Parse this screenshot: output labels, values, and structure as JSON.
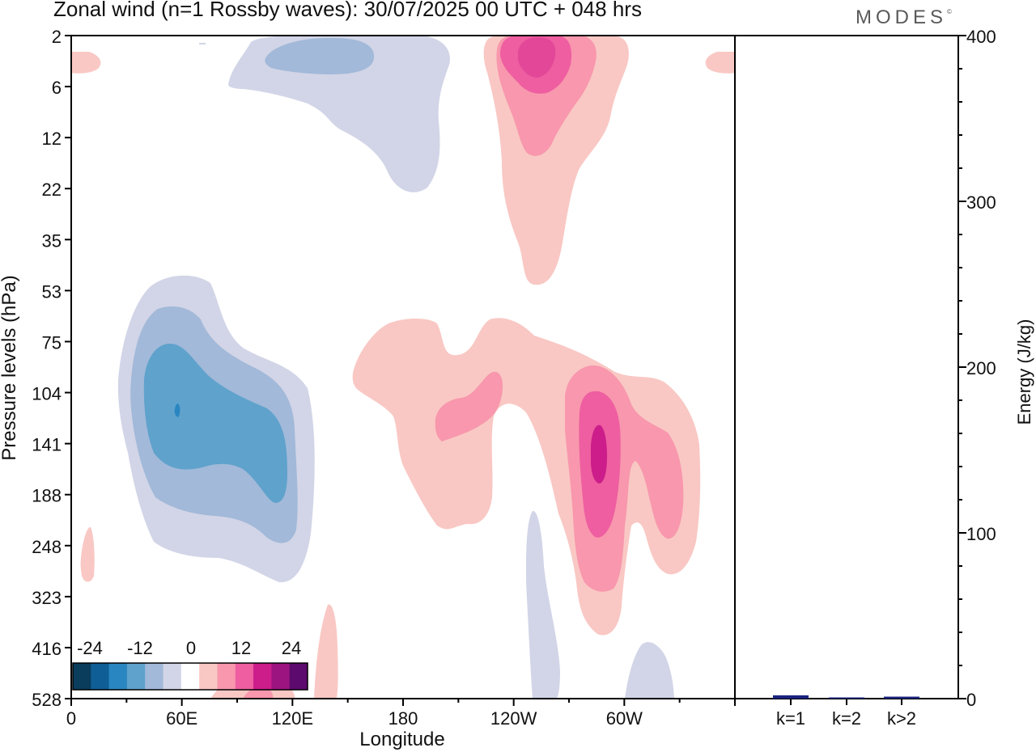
{
  "header": {
    "title": "Zonal wind (n=1 Rossby waves):  30/07/2025  00 UTC  + 048 hrs",
    "brand": "MODES",
    "brand_mark": "©"
  },
  "colors": {
    "neg_levels": [
      "#0a3d5c",
      "#0f5f96",
      "#2a86c0",
      "#5fa2cc",
      "#a2b9d9",
      "#d2d5e7"
    ],
    "pos_levels": [
      "#f9c8c4",
      "#f897ad",
      "#ee5ea0",
      "#cc1d8a",
      "#9c1480",
      "#5c0a6e"
    ],
    "energy_bar": "#1a237e"
  },
  "chart_data": [
    {
      "type": "heatmap",
      "title": "Zonal wind (n=1 Rossby waves):  30/07/2025  00 UTC  + 048 hrs",
      "xlabel": "Longitude",
      "ylabel": "Pressure levels (hPa)",
      "x_ticks": [
        "0",
        "60E",
        "120E",
        "180",
        "120W",
        "60W"
      ],
      "x_tick_degrees": [
        0,
        60,
        120,
        180,
        240,
        300
      ],
      "xlim": [
        0,
        360
      ],
      "y_levels": [
        2,
        6,
        12,
        22,
        35,
        53,
        75,
        104,
        141,
        188,
        248,
        323,
        416,
        528
      ],
      "colorbar": {
        "labels": [
          "-24",
          "-12",
          "0",
          "12",
          "24"
        ],
        "levels": [
          -24,
          -18,
          -12,
          -6,
          -3,
          3,
          6,
          12,
          18,
          24
        ]
      },
      "features": [
        {
          "name": "neg-strat-max",
          "sign": "negative",
          "lon": 130,
          "level_index": 0.5,
          "peak": -8
        },
        {
          "name": "neg-low-max",
          "sign": "negative",
          "lon": 60,
          "level_index": 7.3,
          "peak": -20
        },
        {
          "name": "pos-strat-max",
          "sign": "positive",
          "lon": 250,
          "level_index": 0.8,
          "peak": 15
        },
        {
          "name": "pos-low-max",
          "sign": "positive",
          "lon": 285,
          "level_index": 8.3,
          "peak": 20
        },
        {
          "name": "pos-low-secondary",
          "sign": "positive",
          "lon": 215,
          "level_index": 7.5,
          "peak": 10
        }
      ]
    },
    {
      "type": "bar",
      "title": "",
      "categories": [
        "k=1",
        "k=2",
        "k>2"
      ],
      "values": [
        2,
        0.5,
        1.2
      ],
      "ylabel": "Energy (J/kg)",
      "ylim": [
        0,
        400
      ],
      "y_ticks": [
        "0",
        "100",
        "200",
        "300",
        "400"
      ]
    }
  ]
}
